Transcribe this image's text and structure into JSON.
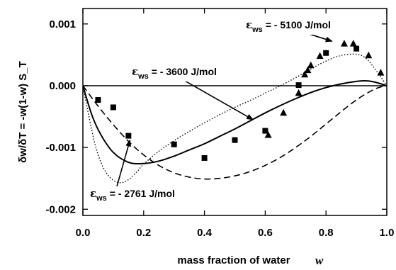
{
  "chart_data": {
    "type": "scatter",
    "xlabel": "mass fraction of water",
    "xlabel_var": "w",
    "ylabel": "δw/δT = -w(1-w) S_T",
    "xlim": [
      0.0,
      1.0
    ],
    "ylim": [
      -0.0021,
      0.00125
    ],
    "xticks": [
      0.0,
      0.2,
      0.4,
      0.6,
      0.8,
      1.0
    ],
    "xtick_labels": [
      "0.0",
      "0.2",
      "0.4",
      "0.6",
      "0.8",
      "1.0"
    ],
    "yticks": [
      0.001,
      0.0,
      -0.001,
      -0.002
    ],
    "ytick_labels": [
      "0.001",
      "0.000",
      "-0.001",
      "-0.002"
    ],
    "grid": false,
    "series": [
      {
        "style": "solid",
        "annotation": "εws = - 3600 J/mol",
        "x": [
          0.0,
          0.03,
          0.06,
          0.1,
          0.15,
          0.2,
          0.25,
          0.3,
          0.35,
          0.4,
          0.45,
          0.5,
          0.55,
          0.6,
          0.65,
          0.7,
          0.75,
          0.8,
          0.85,
          0.9,
          0.93,
          0.96,
          1.0
        ],
        "y": [
          0.0,
          -0.00048,
          -0.0008,
          -0.00108,
          -0.00124,
          -0.00126,
          -0.00122,
          -0.00114,
          -0.00104,
          -0.00094,
          -0.00082,
          -0.0007,
          -0.00057,
          -0.00044,
          -0.00032,
          -0.00021,
          -0.00011,
          -3e-05,
          3e-05,
          7e-05,
          8e-05,
          6e-05,
          0.0
        ]
      },
      {
        "style": "dashed",
        "annotation": "εws = - 2761 J/mol",
        "x": [
          0.0,
          0.05,
          0.1,
          0.15,
          0.2,
          0.25,
          0.3,
          0.35,
          0.4,
          0.45,
          0.5,
          0.55,
          0.6,
          0.65,
          0.7,
          0.75,
          0.8,
          0.85,
          0.9,
          0.95,
          0.98,
          1.0
        ],
        "y": [
          0.0,
          -0.00033,
          -0.00063,
          -0.0009,
          -0.00112,
          -0.00129,
          -0.00141,
          -0.00148,
          -0.00151,
          -0.0015,
          -0.00146,
          -0.00139,
          -0.00129,
          -0.00116,
          -0.001,
          -0.00082,
          -0.00062,
          -0.00042,
          -0.00023,
          -8e-05,
          -2e-05,
          0.0
        ]
      },
      {
        "style": "dotted",
        "annotation": "εws = - 5100 J/mol",
        "x": [
          0.0,
          0.02,
          0.04,
          0.06,
          0.08,
          0.1,
          0.12,
          0.14,
          0.16,
          0.18,
          0.2,
          0.25,
          0.3,
          0.35,
          0.4,
          0.45,
          0.5,
          0.55,
          0.6,
          0.65,
          0.7,
          0.75,
          0.8,
          0.85,
          0.9,
          0.93,
          0.96,
          1.0
        ],
        "y": [
          0.0,
          -0.0005,
          -0.00095,
          -0.00125,
          -0.00143,
          -0.00153,
          -0.00157,
          -0.00155,
          -0.00148,
          -0.00138,
          -0.00127,
          -0.00106,
          -0.00089,
          -0.00074,
          -0.0006,
          -0.00047,
          -0.00035,
          -0.00024,
          -0.00012,
          0.0,
          0.00013,
          0.00027,
          0.0004,
          0.00049,
          0.00051,
          0.00045,
          0.00028,
          0.0
        ]
      },
      {
        "marker": "square",
        "x": [
          0.05,
          0.1,
          0.15,
          0.3,
          0.4,
          0.5,
          0.6,
          0.71,
          0.8,
          0.9
        ],
        "y": [
          -0.00023,
          -0.00035,
          -0.00081,
          -0.00095,
          -0.00117,
          -0.00088,
          -0.00073,
          1e-05,
          0.00053,
          0.0006
        ]
      },
      {
        "marker": "triangle",
        "x": [
          0.61,
          0.66,
          0.71,
          0.73,
          0.74,
          0.75,
          0.78,
          0.86,
          0.89,
          0.94,
          0.98
        ],
        "y": [
          -0.0008,
          -0.00044,
          -0.00012,
          0.00018,
          0.00025,
          0.00033,
          0.00048,
          0.00068,
          0.00068,
          0.00049,
          0.00021
        ]
      }
    ],
    "annotations": [
      {
        "symbol": "ε",
        "sub": "ws",
        "text": "= - 5100 J/mol",
        "arrow_to": [
          0.82,
          0.00072
        ]
      },
      {
        "symbol": "ε",
        "sub": "ws",
        "text": "= - 3600 J/mol",
        "arrow_to": [
          0.56,
          -0.00055
        ]
      },
      {
        "symbol": "ε",
        "sub": "ws",
        "text": "= - 2761 J/mol",
        "arrow_to": [
          0.155,
          -0.00088
        ]
      }
    ]
  }
}
